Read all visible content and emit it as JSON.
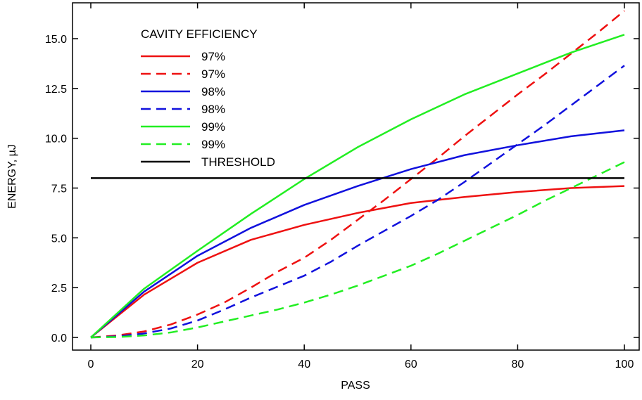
{
  "chart_data": {
    "type": "line",
    "xlabel": "PASS",
    "ylabel": "ENERGY, µJ",
    "xlim": [
      0,
      100
    ],
    "ylim": [
      -0.4,
      16.6
    ],
    "xticks": [
      0,
      20,
      40,
      60,
      80,
      100
    ],
    "yticks": [
      0.0,
      2.5,
      5.0,
      7.5,
      10.0,
      12.5,
      15.0
    ],
    "xtick_labels": [
      "0",
      "20",
      "40",
      "60",
      "80",
      "100"
    ],
    "ytick_labels": [
      "0.0",
      "2.5",
      "5.0",
      "7.5",
      "10.0",
      "12.5",
      "15.0"
    ],
    "grid": false,
    "legend": {
      "title": "CAVITY EFFICIENCY",
      "position": "top-left"
    },
    "series": [
      {
        "name": "97%",
        "color": "#ee1111",
        "dash": "solid",
        "x": [
          0,
          10,
          20,
          30,
          40,
          50,
          60,
          70,
          80,
          90,
          100
        ],
        "y": [
          0,
          2.15,
          3.75,
          4.9,
          5.65,
          6.25,
          6.75,
          7.05,
          7.3,
          7.5,
          7.6
        ]
      },
      {
        "name": "97%",
        "color": "#ee1111",
        "dash": "dashed",
        "x": [
          0,
          5,
          10,
          15,
          20,
          25,
          30,
          35,
          40,
          45,
          50,
          55,
          60,
          65,
          70,
          75,
          80,
          85,
          90,
          95,
          100
        ],
        "y": [
          0,
          0.1,
          0.3,
          0.65,
          1.15,
          1.75,
          2.5,
          3.3,
          4.0,
          4.9,
          5.9,
          6.9,
          7.95,
          9.0,
          10.1,
          11.15,
          12.2,
          13.2,
          14.25,
          15.3,
          16.4
        ]
      },
      {
        "name": "98%",
        "color": "#1111dd",
        "dash": "solid",
        "x": [
          0,
          10,
          20,
          30,
          40,
          50,
          60,
          70,
          80,
          90,
          100
        ],
        "y": [
          0,
          2.3,
          4.1,
          5.5,
          6.65,
          7.6,
          8.45,
          9.15,
          9.65,
          10.1,
          10.4
        ]
      },
      {
        "name": "98%",
        "color": "#1111dd",
        "dash": "dashed",
        "x": [
          0,
          5,
          10,
          15,
          20,
          25,
          30,
          35,
          40,
          45,
          50,
          55,
          60,
          65,
          70,
          75,
          80,
          85,
          90,
          95,
          100
        ],
        "y": [
          0,
          0.05,
          0.2,
          0.45,
          0.85,
          1.4,
          2.0,
          2.55,
          3.1,
          3.8,
          4.6,
          5.35,
          6.1,
          6.9,
          7.8,
          8.75,
          9.7,
          10.65,
          11.65,
          12.65,
          13.65
        ]
      },
      {
        "name": "99%",
        "color": "#22ee22",
        "dash": "solid",
        "x": [
          0,
          10,
          20,
          30,
          40,
          50,
          60,
          70,
          80,
          90,
          100
        ],
        "y": [
          0,
          2.45,
          4.35,
          6.2,
          7.95,
          9.55,
          10.95,
          12.2,
          13.25,
          14.3,
          15.2
        ]
      },
      {
        "name": "99%",
        "color": "#22ee22",
        "dash": "dashed",
        "x": [
          0,
          5,
          10,
          15,
          20,
          25,
          30,
          35,
          40,
          45,
          50,
          55,
          60,
          65,
          70,
          75,
          80,
          85,
          90,
          95,
          100
        ],
        "y": [
          0,
          0.02,
          0.1,
          0.25,
          0.5,
          0.8,
          1.1,
          1.4,
          1.75,
          2.15,
          2.6,
          3.1,
          3.6,
          4.2,
          4.85,
          5.5,
          6.15,
          6.85,
          7.5,
          8.15,
          8.8
        ]
      },
      {
        "name": "THRESHOLD",
        "color": "#000000",
        "dash": "solid",
        "x": [
          0,
          100
        ],
        "y": [
          8.0,
          8.0
        ]
      }
    ]
  }
}
